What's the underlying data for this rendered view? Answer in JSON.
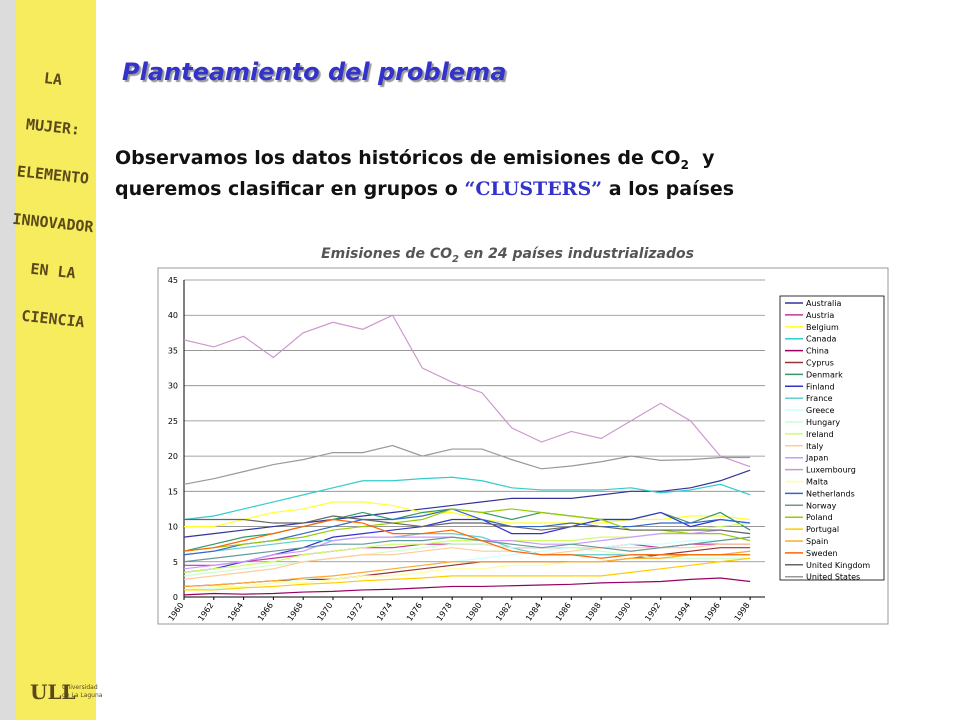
{
  "sidebar": {
    "lines": [
      "LA",
      "MUJER:",
      "ELEMENTO",
      "INNOVADOR",
      "EN LA",
      "CIENCIA"
    ],
    "logo": "ULL",
    "logo_text": [
      "Universidad",
      "de La Laguna"
    ]
  },
  "slide": {
    "title": "Planteamiento del problema",
    "line1": [
      "Observamos los datos históricos de emisiones de CO",
      "2",
      "  y"
    ],
    "line2": [
      "queremos clasificar en grupos o ",
      "“CLUSTERS”",
      " a los países"
    ]
  },
  "chart_data": {
    "type": "line",
    "title": [
      "Emisiones de CO",
      "2",
      " en 24 países industrializados"
    ],
    "x": [
      1960,
      1962,
      1964,
      1966,
      1968,
      1970,
      1972,
      1974,
      1976,
      1978,
      1980,
      1982,
      1984,
      1986,
      1988,
      1990,
      1992,
      1994,
      1996,
      1998
    ],
    "xlim": [
      1960,
      1999
    ],
    "xticks": [
      1960,
      1962,
      1964,
      1966,
      1968,
      1970,
      1972,
      1974,
      1976,
      1978,
      1980,
      1982,
      1984,
      1986,
      1988,
      1990,
      1992,
      1994,
      1996,
      1998
    ],
    "ylim": [
      0,
      45
    ],
    "yticks": [
      0,
      5,
      10,
      15,
      20,
      25,
      30,
      35,
      40,
      45
    ],
    "grid": true,
    "series": [
      {
        "name": "Australia",
        "color": "#333399",
        "values": [
          8.5,
          9,
          9.5,
          10,
          10.5,
          11,
          11.5,
          12,
          12.5,
          13,
          13.5,
          14,
          14,
          14,
          14.5,
          15,
          15,
          15.5,
          16.5,
          18
        ]
      },
      {
        "name": "Austria",
        "color": "#cc3399",
        "values": [
          4.5,
          4.5,
          5,
          5.5,
          6,
          6.5,
          7,
          7,
          7.5,
          7.5,
          7.5,
          7,
          7,
          7,
          7,
          7.5,
          7,
          7.5,
          7.5,
          7.5
        ]
      },
      {
        "name": "Belgium",
        "color": "#ffff33",
        "values": [
          10,
          10,
          11,
          12,
          12.5,
          13.5,
          13.5,
          13,
          12,
          12,
          11,
          10.5,
          10.5,
          10.5,
          10.5,
          11,
          11,
          11.5,
          11.5,
          11
        ]
      },
      {
        "name": "Canada",
        "color": "#33cccc",
        "values": [
          11,
          11.5,
          12.5,
          13.5,
          14.5,
          15.5,
          16.5,
          16.5,
          16.8,
          17,
          16.5,
          15.5,
          15.2,
          15.2,
          15.2,
          15.5,
          14.8,
          15.2,
          16,
          14.5
        ]
      },
      {
        "name": "China",
        "color": "#990066",
        "values": [
          0.3,
          0.5,
          0.4,
          0.5,
          0.7,
          0.8,
          1,
          1.1,
          1.3,
          1.5,
          1.5,
          1.6,
          1.7,
          1.8,
          2,
          2.1,
          2.2,
          2.5,
          2.7,
          2.2
        ]
      },
      {
        "name": "Cyprus",
        "color": "#993333",
        "values": [
          1.5,
          1.7,
          2,
          2.3,
          2.5,
          2.5,
          3,
          3.5,
          4,
          4.5,
          5,
          5,
          5,
          5,
          5,
          5.5,
          6,
          6.5,
          7,
          7
        ]
      },
      {
        "name": "Denmark",
        "color": "#339966",
        "values": [
          6.5,
          7.5,
          8.5,
          9,
          10,
          11,
          12,
          11,
          12,
          12.5,
          12,
          11,
          12,
          11.5,
          11,
          11,
          12,
          10.5,
          12,
          9.5
        ]
      },
      {
        "name": "Finland",
        "color": "#3333cc",
        "values": [
          3.5,
          4,
          5,
          6,
          7,
          8.5,
          9,
          9.5,
          10,
          11,
          11,
          9,
          9,
          10,
          11,
          11,
          12,
          10,
          11,
          10.5
        ]
      },
      {
        "name": "France",
        "color": "#66cccc",
        "values": [
          6,
          6.5,
          7,
          7.5,
          8,
          8,
          8.5,
          8.5,
          9,
          9,
          8.5,
          7,
          6,
          6,
          6,
          6,
          6,
          6,
          6,
          6.5
        ]
      },
      {
        "name": "Greece",
        "color": "#ccffff",
        "values": [
          1,
          1.2,
          1.5,
          2,
          2.5,
          3,
          3.5,
          4,
          4.5,
          5,
          5.5,
          6,
          6.5,
          7,
          7,
          7.5,
          7.5,
          8,
          8,
          8.5
        ]
      },
      {
        "name": "Hungary",
        "color": "#ccffcc",
        "values": [
          3,
          3.5,
          4,
          4.5,
          5,
          5.5,
          6,
          6.5,
          7,
          7.5,
          7.5,
          7,
          7,
          7,
          6.5,
          6,
          5.5,
          5.5,
          5.5,
          5.5
        ]
      },
      {
        "name": "Ireland",
        "color": "#ccff66",
        "values": [
          3.5,
          4,
          4.5,
          5,
          6,
          6.5,
          7,
          7.5,
          7.5,
          8,
          8,
          8,
          8,
          8,
          8.5,
          8.5,
          9,
          9.5,
          10,
          10.5
        ]
      },
      {
        "name": "Italy",
        "color": "#ffcc99",
        "values": [
          2.5,
          3,
          3.5,
          4,
          5,
          5.5,
          6,
          6,
          6.5,
          7,
          6.5,
          6.5,
          6,
          6.5,
          7,
          7,
          7,
          7,
          7.5,
          7.5
        ]
      },
      {
        "name": "Japan",
        "color": "#cc99ff",
        "values": [
          4,
          4.5,
          5,
          6,
          6.5,
          8,
          8.5,
          8.5,
          8.5,
          8.5,
          8,
          8,
          7.5,
          7.5,
          8,
          8.5,
          9,
          9,
          9.5,
          9
        ]
      },
      {
        "name": "Luxembourg",
        "color": "#cc99cc",
        "values": [
          36.5,
          35.5,
          37,
          34,
          37.5,
          39,
          38,
          40,
          32.5,
          30.5,
          29,
          24,
          22,
          23.5,
          22.5,
          25,
          27.5,
          25,
          20,
          18.5
        ]
      },
      {
        "name": "Malta",
        "color": "#ffff99",
        "values": [
          1,
          1.5,
          1.5,
          2,
          2,
          2.5,
          3,
          3,
          3.5,
          4,
          4,
          4.5,
          4.5,
          5,
          5,
          5.5,
          5.5,
          6,
          6,
          6
        ]
      },
      {
        "name": "Netherlands",
        "color": "#3366cc",
        "values": [
          6,
          6.5,
          7.5,
          8,
          9,
          10,
          11,
          11,
          11.5,
          12.5,
          11,
          10,
          10,
          10.5,
          10,
          10,
          10.5,
          10.5,
          11,
          10.5
        ]
      },
      {
        "name": "Norway",
        "color": "#669999",
        "values": [
          5,
          5.5,
          6,
          6.5,
          7,
          7.5,
          7.5,
          8,
          8,
          8.5,
          8,
          7.5,
          7,
          7.5,
          7,
          6.5,
          7,
          7.5,
          8,
          8.5
        ]
      },
      {
        "name": "Poland",
        "color": "#99cc00",
        "values": [
          6.5,
          7,
          7.5,
          8,
          8.5,
          9.5,
          10,
          10.5,
          11,
          12.5,
          12,
          12.5,
          12,
          11.5,
          11,
          9.5,
          9.5,
          9,
          9,
          8
        ]
      },
      {
        "name": "Portugal",
        "color": "#ffcc00",
        "values": [
          1,
          1,
          1.3,
          1.5,
          1.8,
          2,
          2.3,
          2.5,
          2.7,
          3,
          3,
          3,
          3,
          3,
          3,
          3.5,
          4,
          4.5,
          5,
          5.5
        ]
      },
      {
        "name": "Spain",
        "color": "#ffaa33",
        "values": [
          1.5,
          1.7,
          2,
          2.3,
          2.7,
          3,
          3.5,
          4,
          4.5,
          5,
          5,
          5,
          5,
          5,
          5,
          5.5,
          5.5,
          6,
          6,
          6.5
        ]
      },
      {
        "name": "Sweden",
        "color": "#ff6600",
        "values": [
          6.5,
          7,
          8,
          9,
          10,
          11,
          10.5,
          9,
          9,
          9.5,
          8,
          6.5,
          6,
          6,
          5.5,
          6,
          6,
          6,
          6,
          6
        ]
      },
      {
        "name": "United Kingdom",
        "color": "#666666",
        "values": [
          11,
          11,
          11,
          10.5,
          10.5,
          11.5,
          11,
          10.5,
          10,
          10.5,
          10.5,
          10,
          9.5,
          10,
          10,
          9.5,
          9.5,
          9.5,
          9.5,
          9
        ]
      },
      {
        "name": "United States",
        "color": "#999999",
        "values": [
          16,
          16.8,
          17.8,
          18.8,
          19.5,
          20.5,
          20.5,
          21.5,
          20,
          21,
          21,
          19.5,
          18.2,
          18.6,
          19.2,
          20,
          19.4,
          19.5,
          19.8,
          19.8
        ]
      }
    ]
  }
}
